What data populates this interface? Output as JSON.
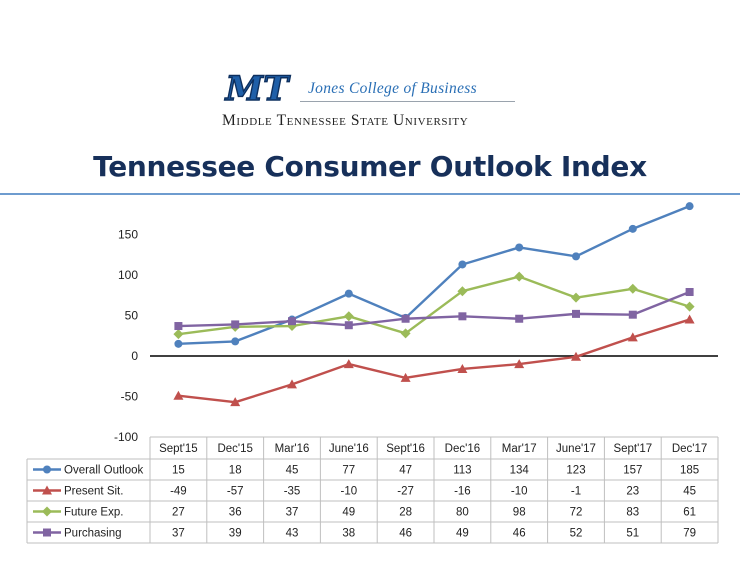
{
  "header": {
    "logo_text": "MT",
    "college": "Jones College of Business",
    "university": "Middle Tennessee State University"
  },
  "title": "Tennessee Consumer Outlook Index",
  "chart_data": {
    "type": "line",
    "title": "Tennessee Consumer Outlook Index",
    "categories": [
      "Sept'15",
      "Dec'15",
      "Mar'16",
      "June'16",
      "Sept'16",
      "Dec'16",
      "Mar'17",
      "June'17",
      "Sept'17",
      "Dec'17"
    ],
    "ylim": [
      -100,
      185
    ],
    "yticks": [
      150,
      100,
      50,
      0,
      -50,
      -100
    ],
    "ytick_labels": [
      "150",
      "100",
      "50",
      "0",
      "-50",
      "-100"
    ],
    "grid": false,
    "legend": "data-table",
    "series": [
      {
        "name": "Overall Outlook",
        "color": "#4f81bd",
        "marker": "circle",
        "values": [
          15,
          18,
          45,
          77,
          47,
          113,
          134,
          123,
          157,
          185
        ]
      },
      {
        "name": "Present Sit.",
        "color": "#c0504d",
        "marker": "triangle",
        "values": [
          -49,
          -57,
          -35,
          -10,
          -27,
          -16,
          -10,
          -1,
          23,
          45
        ]
      },
      {
        "name": "Future Exp.",
        "color": "#9bbb59",
        "marker": "diamond",
        "values": [
          27,
          36,
          37,
          49,
          28,
          80,
          98,
          72,
          83,
          61
        ]
      },
      {
        "name": "Purchasing",
        "color": "#8064a2",
        "marker": "square",
        "values": [
          37,
          39,
          43,
          38,
          46,
          49,
          46,
          52,
          51,
          79
        ]
      }
    ]
  }
}
